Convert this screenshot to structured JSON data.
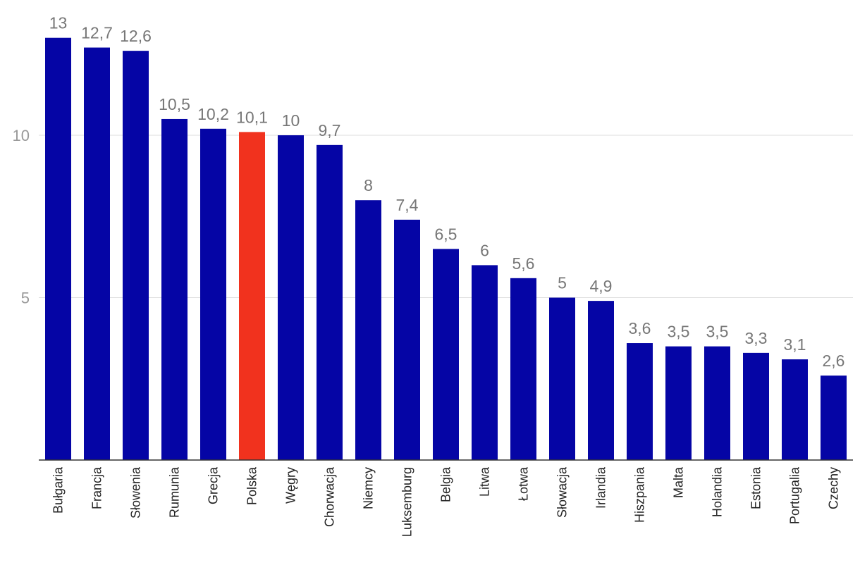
{
  "chart_data": {
    "type": "bar",
    "title": "",
    "xlabel": "",
    "ylabel": "",
    "ylim": [
      0,
      13.5
    ],
    "yticks": [
      5,
      10
    ],
    "grid": true,
    "categories": [
      "Bułgaria",
      "Francja",
      "Słowenia",
      "Rumunia",
      "Grecja",
      "Polska",
      "Węgry",
      "Chorwacja",
      "Niemcy",
      "Luksemburg",
      "Belgia",
      "Litwa",
      "Łotwa",
      "Słowacja",
      "Irlandia",
      "Hiszpania",
      "Malta",
      "Holandia",
      "Estonia",
      "Portugalia",
      "Czechy"
    ],
    "values": [
      13,
      12.7,
      12.6,
      10.5,
      10.2,
      10.1,
      10,
      9.7,
      8,
      7.4,
      6.5,
      6,
      5.6,
      5,
      4.9,
      3.6,
      3.5,
      3.5,
      3.3,
      3.1,
      2.6
    ],
    "value_labels": [
      "13",
      "12,7",
      "12,6",
      "10,5",
      "10,2",
      "10,1",
      "10",
      "9,7",
      "8",
      "7,4",
      "6,5",
      "6",
      "5,6",
      "5",
      "4,9",
      "3,6",
      "3,5",
      "3,5",
      "3,3",
      "3,1",
      "2,6"
    ],
    "highlight": "Polska",
    "colors": {
      "bar": "#0505a5",
      "highlight": "#f1321e",
      "value_label": "#777777",
      "tick_label": "#999999",
      "category_label": "#222222",
      "grid": "#dddddd",
      "axis": "#333333"
    }
  }
}
